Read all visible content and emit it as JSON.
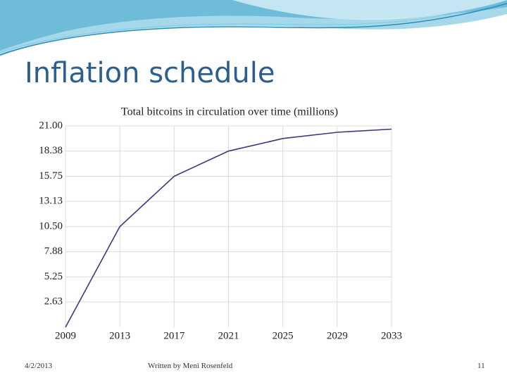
{
  "slide": {
    "title": "Inflation schedule",
    "date": "4/2/2013",
    "author": "Written by Meni Rosenfeld",
    "page": "11"
  },
  "chart_data": {
    "type": "line",
    "title": "Total bitcoins in circulation over time (millions)",
    "x": [
      2009,
      2013,
      2017,
      2021,
      2025,
      2029,
      2033
    ],
    "series": [
      {
        "name": "Total bitcoins",
        "color": "#3a3a80",
        "values": [
          0,
          10.5,
          15.75,
          18.38,
          19.69,
          20.34,
          20.67
        ]
      }
    ],
    "xlim": [
      2009,
      2033
    ],
    "xticks": [
      2009,
      2013,
      2017,
      2021,
      2025,
      2029,
      2033
    ],
    "ylim": [
      0,
      21
    ],
    "yticks": [
      2.63,
      5.25,
      7.88,
      {
        "value": 10.5,
        "label": "10.50"
      },
      13.13,
      15.75,
      18.38,
      {
        "value": 21,
        "label": "21.00"
      }
    ],
    "grid": true
  }
}
